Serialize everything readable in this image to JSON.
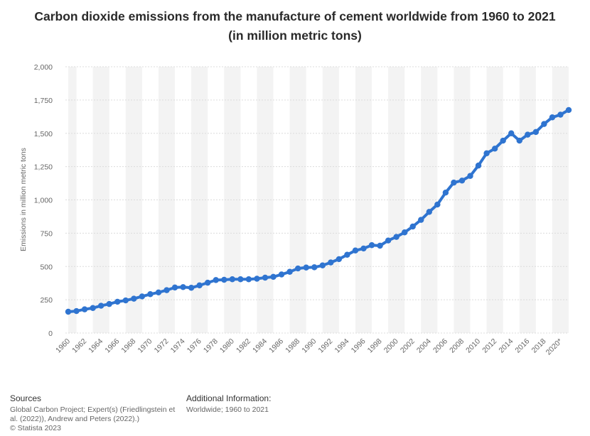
{
  "chart_data": {
    "type": "line",
    "title": "Carbon dioxide emissions from the manufacture of cement worldwide from 1960 to 2021 (in million metric tons)",
    "ylabel": "Emissions in million metric tons",
    "xlabel": "",
    "ylim": [
      0,
      2000
    ],
    "yticks": [
      0,
      250,
      500,
      750,
      1000,
      1250,
      1500,
      1750,
      2000
    ],
    "ytick_labels": [
      "0",
      "250",
      "500",
      "750",
      "1,000",
      "1,250",
      "1,500",
      "1,750",
      "2,000"
    ],
    "x": [
      1960,
      1961,
      1962,
      1963,
      1964,
      1965,
      1966,
      1967,
      1968,
      1969,
      1970,
      1971,
      1972,
      1973,
      1974,
      1975,
      1976,
      1977,
      1978,
      1979,
      1980,
      1981,
      1982,
      1983,
      1984,
      1985,
      1986,
      1987,
      1988,
      1989,
      1990,
      1991,
      1992,
      1993,
      1994,
      1995,
      1996,
      1997,
      1998,
      1999,
      2000,
      2001,
      2002,
      2003,
      2004,
      2005,
      2006,
      2007,
      2008,
      2009,
      2010,
      2011,
      2012,
      2013,
      2014,
      2015,
      2016,
      2017,
      2018,
      2019,
      2020,
      2021
    ],
    "xtick_labels": [
      "1960",
      "1962",
      "1964",
      "1966",
      "1968",
      "1970",
      "1972",
      "1974",
      "1976",
      "1978",
      "1980",
      "1982",
      "1984",
      "1986",
      "1988",
      "1990",
      "1992",
      "1994",
      "1996",
      "1998",
      "2000",
      "2002",
      "2004",
      "2006",
      "2008",
      "2010",
      "2012",
      "2014",
      "2016",
      "2018",
      "2020*"
    ],
    "grid": true,
    "series": [
      {
        "values": [
          160,
          165,
          178,
          188,
          205,
          218,
          235,
          245,
          258,
          275,
          292,
          305,
          322,
          342,
          345,
          340,
          358,
          378,
          398,
          400,
          404,
          404,
          404,
          408,
          416,
          422,
          440,
          460,
          485,
          492,
          494,
          508,
          530,
          555,
          588,
          620,
          635,
          660,
          656,
          695,
          722,
          756,
          800,
          850,
          910,
          965,
          1055,
          1130,
          1145,
          1180,
          1258,
          1350,
          1385,
          1445,
          1500,
          1445,
          1490,
          1510,
          1570,
          1620,
          1640,
          1675
        ]
      }
    ],
    "colors": {
      "line": "#2f74d0",
      "grid": "#dcdcdc",
      "band": "#f3f3f3"
    }
  },
  "footer": {
    "sources_heading": "Sources",
    "sources_lines": [
      "Global Carbon Project; Expert(s) (Friedlingstein et",
      "al. (2022)), Andrew and Peters (2022).)",
      "© Statista 2023"
    ],
    "additional_heading": "Additional Information:",
    "additional_text": "Worldwide; 1960 to 2021"
  }
}
